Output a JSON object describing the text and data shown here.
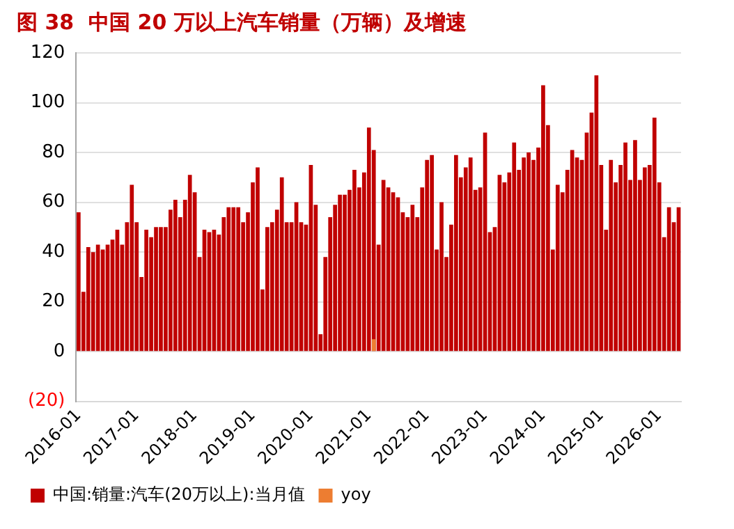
{
  "chart_data": {
    "type": "bar",
    "title": "图 38  中国 20 万以上汽车销量（万辆）及增速",
    "categories": [
      "2016-01",
      null,
      null,
      null,
      null,
      null,
      null,
      null,
      null,
      null,
      null,
      null,
      "2017-01",
      null,
      null,
      null,
      null,
      null,
      null,
      null,
      null,
      null,
      null,
      null,
      "2018-01",
      null,
      null,
      null,
      null,
      null,
      null,
      null,
      null,
      null,
      null,
      null,
      "2019-01",
      null,
      null,
      null,
      null,
      null,
      null,
      null,
      null,
      null,
      null,
      null,
      "2020-01",
      null,
      null,
      null,
      null,
      null,
      null,
      null,
      null,
      null,
      null,
      null,
      "2021-01",
      null,
      null,
      null,
      null,
      null,
      null,
      null,
      null,
      null,
      null,
      null,
      "2022-01",
      null,
      null,
      null,
      null,
      null,
      null,
      null,
      null,
      null,
      null,
      null,
      "2023-01",
      null,
      null,
      null,
      null,
      null,
      null,
      null,
      null,
      null,
      null,
      null,
      "2024-01",
      null,
      null,
      null,
      null,
      null,
      null,
      null,
      null,
      null,
      null,
      null,
      "2025-01",
      null,
      null,
      null,
      null,
      null,
      null,
      null,
      null,
      null,
      null,
      null,
      "2026-01",
      null,
      null,
      null,
      null
    ],
    "series": [
      {
        "name": "中国:销量:汽车(20万以上):当月值",
        "color": "#c00000",
        "values": [
          56,
          24,
          42,
          40,
          43,
          41,
          43,
          45,
          49,
          43,
          52,
          67,
          52,
          30,
          49,
          46,
          50,
          50,
          50,
          57,
          61,
          54,
          61,
          71,
          64,
          38,
          49,
          48,
          49,
          47,
          54,
          58,
          58,
          58,
          52,
          56,
          68,
          74,
          25,
          50,
          52,
          57,
          70,
          52,
          52,
          60,
          52,
          51,
          75,
          59,
          7,
          38,
          54,
          59,
          63,
          63,
          65,
          73,
          66,
          72,
          90,
          81,
          43,
          69,
          66,
          64,
          62,
          56,
          54,
          59,
          54,
          66,
          77,
          79,
          41,
          60,
          38,
          51,
          79,
          70,
          74,
          78,
          65,
          66,
          88,
          48,
          50,
          71,
          68,
          72,
          84,
          73,
          78,
          80,
          77,
          82,
          107,
          91,
          41,
          67,
          64,
          73,
          81,
          78,
          77,
          88,
          96,
          111,
          75,
          49,
          77,
          68,
          75,
          84,
          69,
          85,
          69,
          74,
          75,
          94,
          68,
          46,
          58,
          52,
          58
        ]
      },
      {
        "name": "yoy",
        "color": "#ed7d31",
        "values": [
          null,
          null,
          null,
          null,
          null,
          null,
          null,
          null,
          null,
          null,
          null,
          null,
          null,
          null,
          null,
          null,
          null,
          null,
          null,
          null,
          null,
          null,
          null,
          null,
          null,
          null,
          null,
          null,
          null,
          null,
          null,
          null,
          null,
          null,
          null,
          null,
          null,
          null,
          null,
          null,
          null,
          null,
          null,
          null,
          null,
          null,
          null,
          null,
          null,
          null,
          null,
          null,
          null,
          null,
          null,
          null,
          null,
          null,
          null,
          null,
          null,
          5,
          null,
          null,
          null,
          null,
          null,
          null,
          null,
          null,
          null,
          null,
          null,
          null,
          null,
          null,
          null,
          null,
          null,
          null,
          null,
          null,
          null,
          null,
          null,
          null,
          null,
          null,
          null,
          null,
          null,
          null,
          null,
          null,
          null,
          null,
          null,
          null,
          null,
          null,
          null,
          null,
          null,
          null,
          null,
          null,
          null,
          null,
          null,
          null,
          null,
          null,
          null,
          null,
          null,
          null,
          null,
          null,
          null,
          null,
          null,
          null,
          null,
          null,
          null
        ]
      }
    ],
    "ylim": [
      -20,
      120
    ],
    "yticks": [
      {
        "value": -20,
        "label": "(20)"
      },
      0,
      20,
      40,
      60,
      80,
      100,
      120
    ],
    "grid": "y",
    "legend": "bottom"
  }
}
